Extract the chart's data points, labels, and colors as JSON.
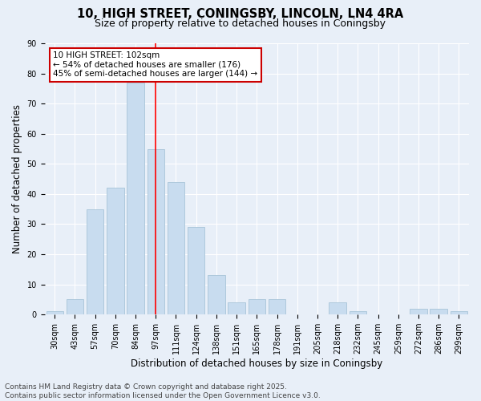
{
  "title_line1": "10, HIGH STREET, CONINGSBY, LINCOLN, LN4 4RA",
  "title_line2": "Size of property relative to detached houses in Coningsby",
  "xlabel": "Distribution of detached houses by size in Coningsby",
  "ylabel": "Number of detached properties",
  "bar_color": "#c8dcef",
  "bar_edge_color": "#a8c4d8",
  "background_color": "#e8eff8",
  "grid_color": "#ffffff",
  "categories": [
    "30sqm",
    "43sqm",
    "57sqm",
    "70sqm",
    "84sqm",
    "97sqm",
    "111sqm",
    "124sqm",
    "138sqm",
    "151sqm",
    "165sqm",
    "178sqm",
    "191sqm",
    "205sqm",
    "218sqm",
    "232sqm",
    "245sqm",
    "259sqm",
    "272sqm",
    "286sqm",
    "299sqm"
  ],
  "values": [
    1,
    5,
    35,
    42,
    77,
    55,
    44,
    29,
    13,
    4,
    5,
    5,
    0,
    0,
    4,
    1,
    0,
    0,
    2,
    2,
    1
  ],
  "red_line_x": 5,
  "annotation_text": "10 HIGH STREET: 102sqm\n← 54% of detached houses are smaller (176)\n45% of semi-detached houses are larger (144) →",
  "annotation_box_color": "#ffffff",
  "annotation_box_edge_color": "#cc0000",
  "ylim": [
    0,
    90
  ],
  "yticks": [
    0,
    10,
    20,
    30,
    40,
    50,
    60,
    70,
    80,
    90
  ],
  "footer_line1": "Contains HM Land Registry data © Crown copyright and database right 2025.",
  "footer_line2": "Contains public sector information licensed under the Open Government Licence v3.0.",
  "title_fontsize": 10.5,
  "subtitle_fontsize": 9,
  "axis_label_fontsize": 8.5,
  "tick_fontsize": 7,
  "annotation_fontsize": 7.5,
  "footer_fontsize": 6.5
}
